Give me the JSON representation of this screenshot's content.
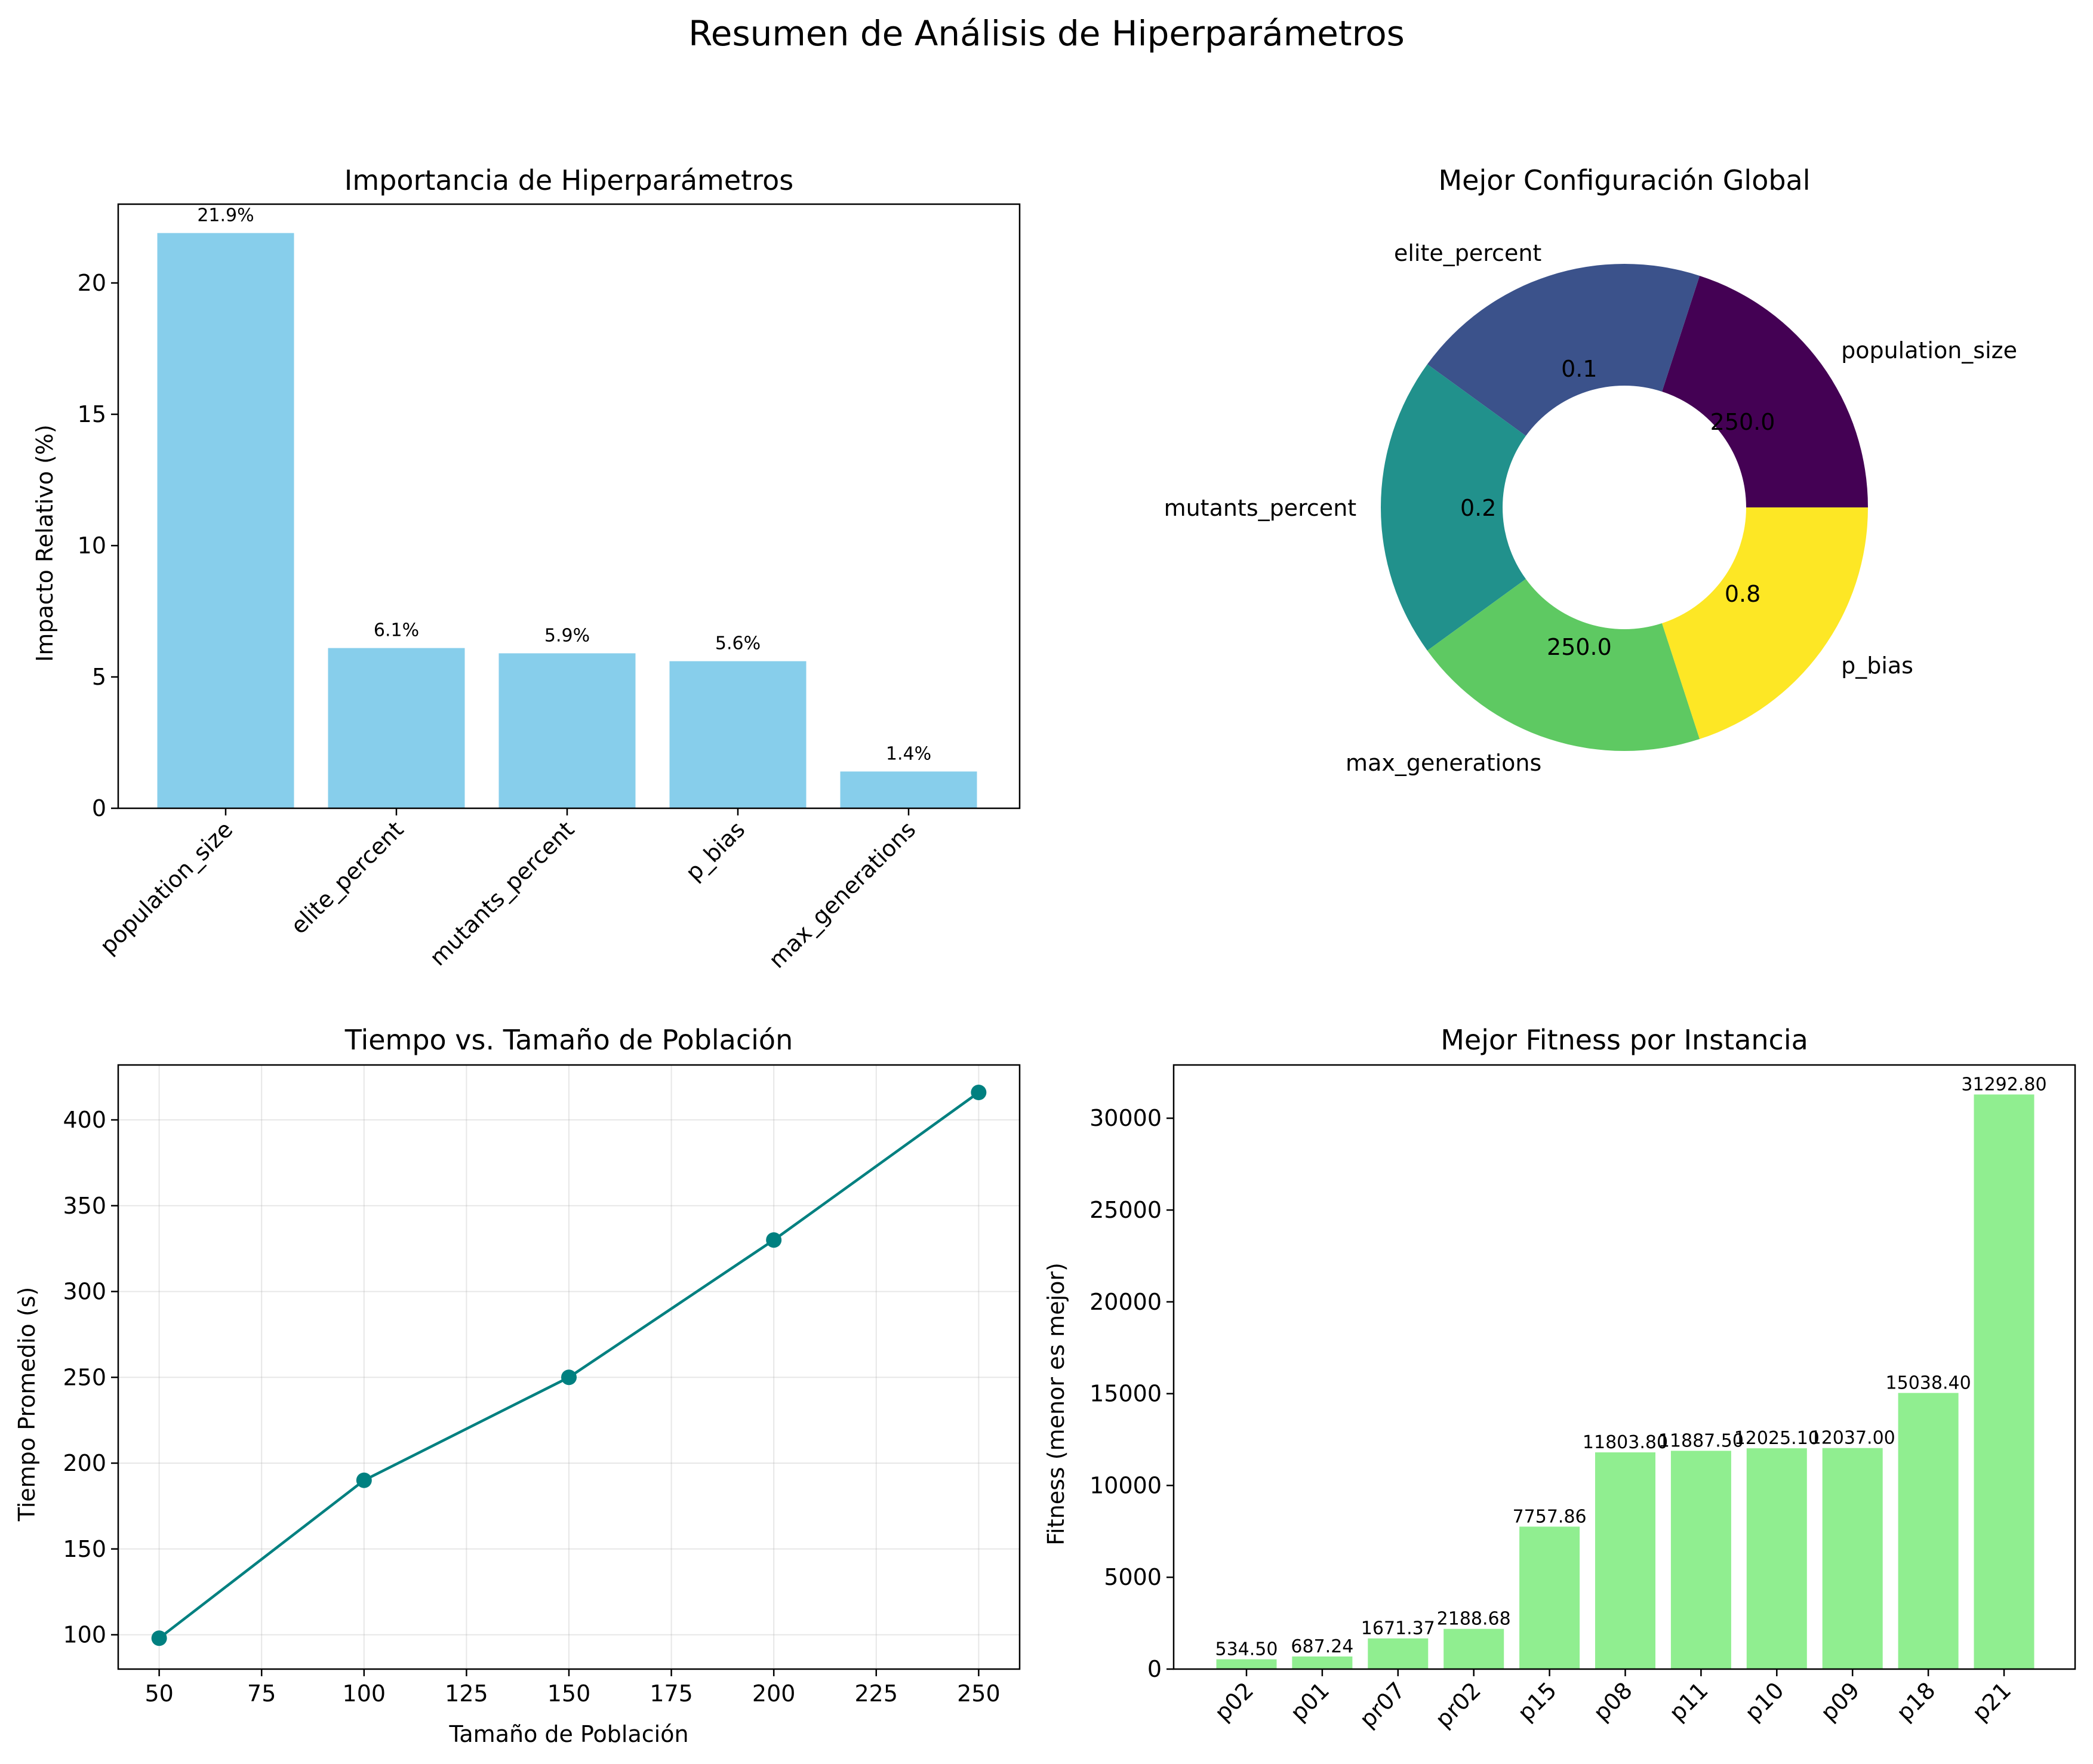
{
  "suptitle": "Resumen de Análisis de Hiperparámetros",
  "chart_data": [
    {
      "type": "bar",
      "title": "Importancia de Hiperparámetros",
      "xlabel": "",
      "ylabel": "Impacto Relativo (%)",
      "ylim": [
        0,
        23
      ],
      "yticks": [
        "0",
        "5",
        "10",
        "15",
        "20"
      ],
      "categories": [
        "population_size",
        "elite_percent",
        "mutants_percent",
        "p_bias",
        "max_generations"
      ],
      "values": [
        21.9,
        6.1,
        5.9,
        5.6,
        1.4
      ],
      "value_labels": [
        "21.9%",
        "6.1%",
        "5.9%",
        "5.6%",
        "1.4%"
      ],
      "color": "#87ceeb",
      "grid": false
    },
    {
      "type": "pie",
      "subtype": "donut",
      "title": "Mejor Configuración Global",
      "labels": [
        "population_size",
        "elite_percent",
        "mutants_percent",
        "max_generations",
        "p_bias"
      ],
      "values": [
        250.0,
        0.1,
        0.2,
        250.0,
        0.8
      ],
      "value_labels": [
        "250.0",
        "0.1",
        "0.2",
        "250.0",
        "0.8"
      ],
      "colors": [
        "#440154",
        "#3b528b",
        "#21918c",
        "#5ec962",
        "#fde725"
      ]
    },
    {
      "type": "line",
      "title": "Tiempo vs. Tamaño de Población",
      "xlabel": "Tamaño de Población",
      "ylabel": "Tiempo Promedio (s)",
      "x": [
        50,
        100,
        150,
        200,
        250
      ],
      "y": [
        98,
        190,
        250,
        330,
        416
      ],
      "xlim": [
        40,
        260
      ],
      "ylim": [
        80,
        432
      ],
      "xticks": [
        "50",
        "75",
        "100",
        "125",
        "150",
        "175",
        "200",
        "225",
        "250"
      ],
      "yticks": [
        "100",
        "150",
        "200",
        "250",
        "300",
        "350",
        "400"
      ],
      "color": "#008080",
      "grid": true
    },
    {
      "type": "bar",
      "title": "Mejor Fitness por Instancia",
      "xlabel": "",
      "ylabel": "Fitness (menor es mejor)",
      "ylim": [
        0,
        32900
      ],
      "yticks": [
        "0",
        "5000",
        "10000",
        "15000",
        "20000",
        "25000",
        "30000"
      ],
      "categories": [
        "p02",
        "p01",
        "pr07",
        "pr02",
        "p15",
        "p08",
        "p11",
        "p10",
        "p09",
        "p18",
        "p21"
      ],
      "values": [
        534.5,
        687.24,
        1671.37,
        2188.68,
        7757.86,
        11803.8,
        11887.5,
        12025.1,
        12037.0,
        15038.4,
        31292.8
      ],
      "value_labels": [
        "534.50",
        "687.24",
        "1671.37",
        "2188.68",
        "7757.86",
        "11803.80",
        "11887.50",
        "12025.10",
        "12037.00",
        "15038.40",
        "31292.80"
      ],
      "color": "#90ee90",
      "grid": false
    }
  ]
}
